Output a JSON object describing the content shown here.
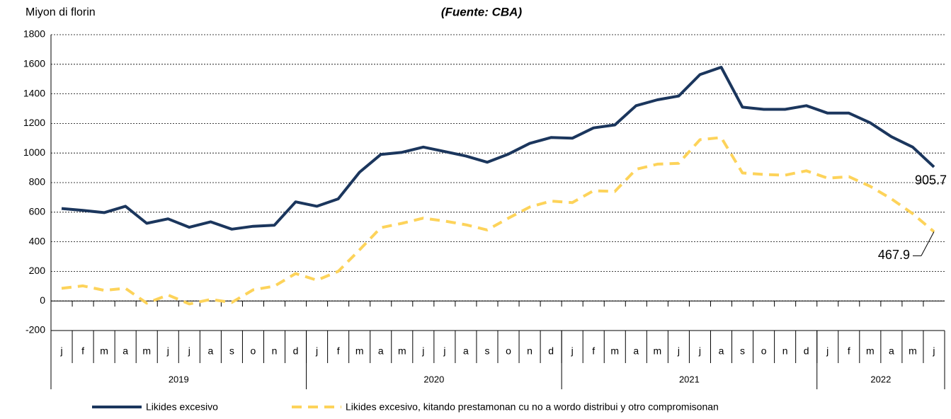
{
  "chart_data": {
    "type": "line",
    "title": "(Fuente: CBA)",
    "y_label": "Miyon di florin",
    "categories": [
      "j",
      "f",
      "m",
      "a",
      "m",
      "j",
      "j",
      "a",
      "s",
      "o",
      "n",
      "d",
      "j",
      "f",
      "m",
      "a",
      "m",
      "j",
      "j",
      "a",
      "s",
      "o",
      "n",
      "d",
      "j",
      "f",
      "m",
      "a",
      "m",
      "j",
      "j",
      "a",
      "s",
      "o",
      "n",
      "d",
      "j",
      "f",
      "m",
      "a",
      "m",
      "j"
    ],
    "category_groups": [
      {
        "label": "2019",
        "count": 12
      },
      {
        "label": "2020",
        "count": 12
      },
      {
        "label": "2021",
        "count": 12
      },
      {
        "label": "2022",
        "count": 6
      }
    ],
    "series": [
      {
        "name": "Likides excesivo",
        "color": "#1b365d",
        "dashed": false,
        "values": [
          625,
          612,
          597,
          640,
          525,
          555,
          498,
          535,
          485,
          505,
          512,
          670,
          640,
          690,
          870,
          990,
          1005,
          1040,
          1010,
          980,
          938,
          993,
          1065,
          1105,
          1100,
          1170,
          1190,
          1320,
          1360,
          1385,
          1530,
          1580,
          1310,
          1295,
          1295,
          1320,
          1270,
          1270,
          1205,
          1110,
          1040,
          905.7
        ]
      },
      {
        "name": "Likides excesivo, kitando prestamonan cu no a wordo distribui y otro compromisonan",
        "color": "#fdd35a",
        "dashed": true,
        "values": [
          85,
          102,
          72,
          85,
          -15,
          40,
          -20,
          10,
          -10,
          75,
          100,
          185,
          140,
          200,
          345,
          495,
          525,
          560,
          540,
          515,
          480,
          560,
          635,
          675,
          665,
          745,
          740,
          890,
          925,
          930,
          1090,
          1105,
          865,
          855,
          850,
          880,
          830,
          840,
          775,
          690,
          590,
          467.9
        ]
      }
    ],
    "ylim": [
      -200,
      1800
    ],
    "yticks": [
      -200,
      0,
      200,
      400,
      600,
      800,
      1000,
      1200,
      1400,
      1600,
      1800
    ],
    "grid": true
  }
}
